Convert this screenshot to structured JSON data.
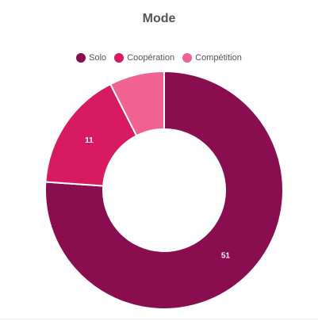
{
  "chart_data": {
    "type": "pie",
    "title": "Mode",
    "categories": [
      "Solo",
      "Coopération",
      "Compétition"
    ],
    "values": [
      51,
      11,
      5
    ],
    "data_labels": [
      "51",
      "11",
      ""
    ],
    "colors": [
      "#8a0e4f",
      "#d81b60",
      "#f06292"
    ],
    "legend_position": "top",
    "donut": true
  }
}
